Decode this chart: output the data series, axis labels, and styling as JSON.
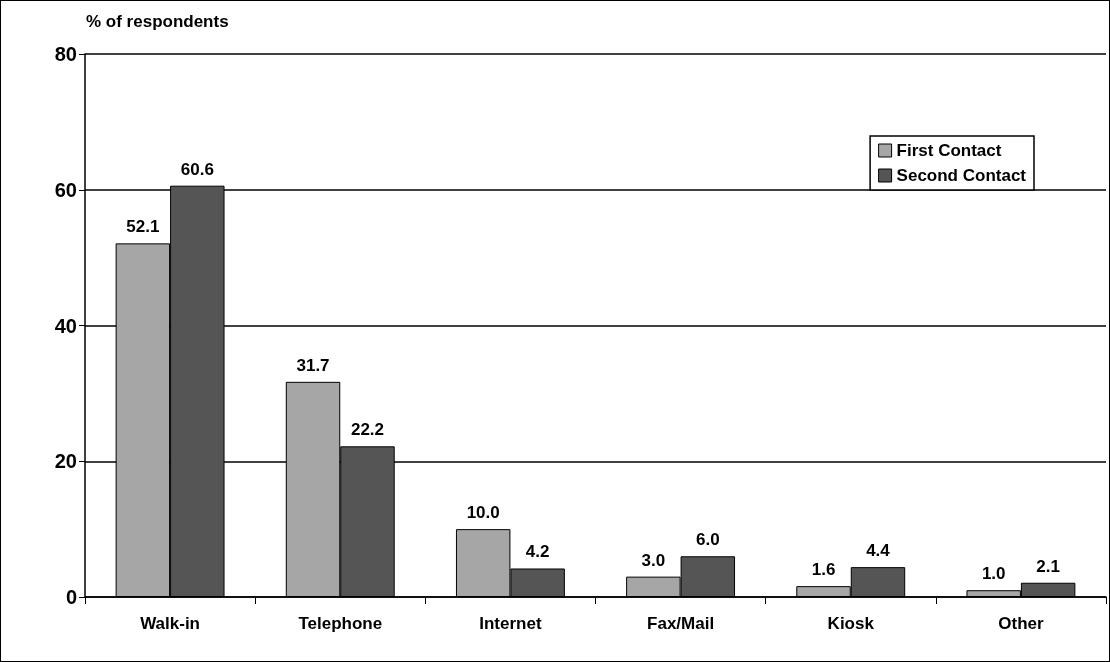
{
  "chart_data": {
    "type": "bar",
    "ylabel": "% of respondents",
    "categories": [
      "Walk-in",
      "Telephone",
      "Internet",
      "Fax/Mail",
      "Kiosk",
      "Other"
    ],
    "series": [
      {
        "name": "First Contact",
        "color": "#a6a6a6",
        "values": [
          52.1,
          31.7,
          10.0,
          3.0,
          1.6,
          1.0
        ],
        "value_labels": [
          "52.1",
          "31.7",
          "10.0",
          "3.0",
          "1.6",
          "1.0"
        ]
      },
      {
        "name": "Second Contact",
        "color": "#555555",
        "values": [
          60.6,
          22.2,
          4.2,
          6.0,
          4.4,
          2.1
        ],
        "value_labels": [
          "60.6",
          "22.2",
          "4.2",
          "6.0",
          "4.4",
          "2.1"
        ]
      }
    ],
    "ylim": [
      0,
      80
    ],
    "yticks": [
      0,
      20,
      40,
      60,
      80
    ],
    "grid": "y",
    "legend": "top right"
  }
}
